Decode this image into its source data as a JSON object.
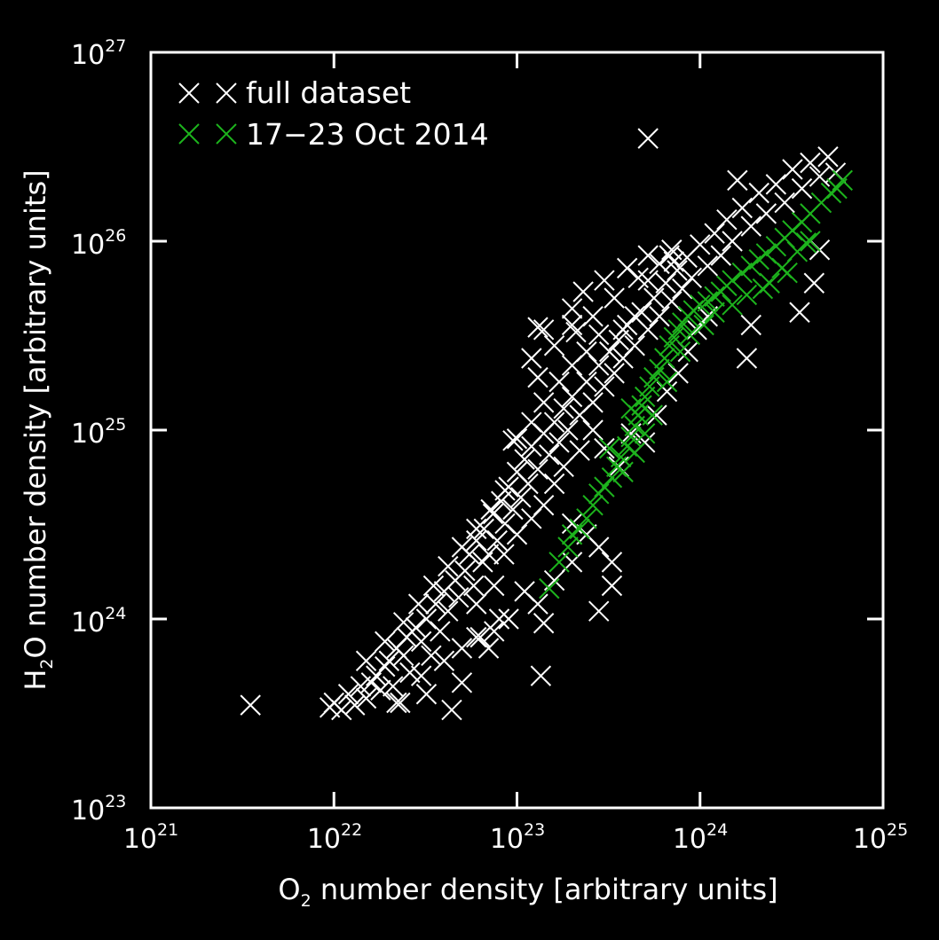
{
  "chart_data": {
    "type": "scatter",
    "xscale": "log",
    "yscale": "log",
    "xlim": [
      1e+21,
      1e+25
    ],
    "ylim": [
      1e+23,
      1e+27
    ],
    "xlabel": {
      "base": "O",
      "sub": "2",
      "rest": " number density [arbitrary units]"
    },
    "ylabel": {
      "base": "H",
      "sub": "2",
      "rest": "O number density [arbitrary units]"
    },
    "x_ticks": [
      {
        "base": "10",
        "exp": "21",
        "value": 1e+21
      },
      {
        "base": "10",
        "exp": "22",
        "value": 1e+22
      },
      {
        "base": "10",
        "exp": "23",
        "value": 1e+23
      },
      {
        "base": "10",
        "exp": "24",
        "value": 1e+24
      },
      {
        "base": "10",
        "exp": "25",
        "value": 1e+25
      }
    ],
    "y_ticks": [
      {
        "base": "10",
        "exp": "23",
        "value": 1e+23
      },
      {
        "base": "10",
        "exp": "24",
        "value": 1e+24
      },
      {
        "base": "10",
        "exp": "25",
        "value": 1e+25
      },
      {
        "base": "10",
        "exp": "26",
        "value": 1e+26
      },
      {
        "base": "10",
        "exp": "27",
        "value": 1e+27
      }
    ],
    "legend_position": "top-left",
    "grid": false,
    "marker": "x",
    "colors": {
      "background": "#000000",
      "axes": "#ffffff",
      "full": "#ffffff",
      "oct": "#1db31d"
    },
    "series": [
      {
        "name": "full dataset",
        "color": "#ffffff",
        "points": [
          [
            9.5e+21,
            3.4e+23
          ],
          [
            1e+22,
            3.6e+23
          ],
          [
            1.1e+22,
            3.3e+23
          ],
          [
            1.2e+22,
            4e+23
          ],
          [
            1.3e+22,
            3.5e+23
          ],
          [
            1.4e+22,
            4.4e+23
          ],
          [
            1.5e+22,
            3.8e+23
          ],
          [
            1.6e+22,
            4.6e+23
          ],
          [
            1.7e+22,
            5e+23
          ],
          [
            1.8e+22,
            4.2e+23
          ],
          [
            1.9e+22,
            5.6e+23
          ],
          [
            2e+22,
            6e+23
          ],
          [
            2.1e+22,
            4.4e+23
          ],
          [
            2.2e+22,
            7e+23
          ],
          [
            2.3e+22,
            3.6e+23
          ],
          [
            2.4e+22,
            6.4e+23
          ],
          [
            2.5e+22,
            8e+23
          ],
          [
            2.6e+22,
            5.2e+23
          ],
          [
            2.8e+22,
            9e+23
          ],
          [
            3e+22,
            7.6e+23
          ],
          [
            3.2e+22,
            1e+24
          ],
          [
            3.4e+22,
            6.4e+23
          ],
          [
            3.6e+22,
            1.2e+24
          ],
          [
            3.8e+22,
            8.6e+23
          ],
          [
            4e+22,
            1.4e+24
          ],
          [
            4.2e+22,
            1.1e+24
          ],
          [
            4.4e+22,
            3.3e+23
          ],
          [
            4.6e+22,
            1.6e+24
          ],
          [
            4.8e+22,
            1.3e+24
          ],
          [
            5e+22,
            4.6e+23
          ],
          [
            5.2e+22,
            1.8e+24
          ],
          [
            5.5e+22,
            2.2e+24
          ],
          [
            5.8e+22,
            1.5e+24
          ],
          [
            6e+22,
            2.6e+24
          ],
          [
            6.3e+22,
            8e+23
          ],
          [
            6.6e+22,
            3e+24
          ],
          [
            7e+22,
            2.2e+24
          ],
          [
            7.4e+22,
            3.6e+24
          ],
          [
            7.8e+22,
            2.6e+24
          ],
          [
            8.2e+22,
            4.2e+24
          ],
          [
            8.6e+22,
            3.2e+24
          ],
          [
            9e+22,
            5e+24
          ],
          [
            9.5e+22,
            3.8e+24
          ],
          [
            1e+23,
            6e+24
          ],
          [
            1.05e+23,
            4.4e+24
          ],
          [
            1.1e+23,
            7e+24
          ],
          [
            1.15e+23,
            5.2e+24
          ],
          [
            1.2e+23,
            8.2e+24
          ],
          [
            1.3e+23,
            6.2e+24
          ],
          [
            1.4e+23,
            9.6e+24
          ],
          [
            1.5e+23,
            7.4e+24
          ],
          [
            1.6e+23,
            1.1e+25
          ],
          [
            1.7e+23,
            8.6e+24
          ],
          [
            1.8e+23,
            1.3e+25
          ],
          [
            1.9e+23,
            1e+25
          ],
          [
            2e+23,
            1.5e+25
          ],
          [
            2.2e+23,
            1.2e+25
          ],
          [
            2.4e+23,
            1.8e+25
          ],
          [
            2.6e+23,
            1.4e+25
          ],
          [
            2.8e+23,
            2.2e+25
          ],
          [
            3e+23,
            1.7e+25
          ],
          [
            3.2e+23,
            2.6e+25
          ],
          [
            3.4e+23,
            2e+25
          ],
          [
            3.6e+23,
            3e+25
          ],
          [
            3.8e+23,
            2.4e+25
          ],
          [
            4e+23,
            3.6e+25
          ],
          [
            4.4e+23,
            2.8e+25
          ],
          [
            4.8e+23,
            4.2e+25
          ],
          [
            5.2e+23,
            3.4e+25
          ],
          [
            5.6e+23,
            5e+25
          ],
          [
            6e+23,
            4e+25
          ],
          [
            6.5e+23,
            6e+25
          ],
          [
            7e+23,
            4.8e+25
          ],
          [
            7.5e+23,
            7e+25
          ],
          [
            8e+23,
            5.6e+25
          ],
          [
            8.5e+23,
            8.2e+25
          ],
          [
            9e+23,
            6.4e+25
          ],
          [
            1e+24,
            9.6e+25
          ],
          [
            1.1e+24,
            7.4e+25
          ],
          [
            1.2e+24,
            1.1e+26
          ],
          [
            1.3e+24,
            8.4e+25
          ],
          [
            1.4e+24,
            1.3e+26
          ],
          [
            1.5e+24,
            1e+26
          ],
          [
            1.7e+24,
            1.5e+26
          ],
          [
            1.9e+24,
            1.2e+26
          ],
          [
            2.1e+24,
            1.8e+26
          ],
          [
            2.3e+24,
            1.4e+26
          ],
          [
            2.6e+24,
            2e+26
          ],
          [
            2.9e+24,
            1.6e+26
          ],
          [
            3.2e+24,
            2.4e+26
          ],
          [
            3.6e+24,
            1.9e+26
          ],
          [
            4e+24,
            2.6e+26
          ],
          [
            4.5e+24,
            2.2e+26
          ],
          [
            5e+24,
            2.8e+26
          ],
          [
            5.5e+24,
            2.3e+26
          ],
          [
            1.2e+23,
            2.4e+25
          ],
          [
            1.4e+23,
            3.4e+25
          ],
          [
            1.6e+23,
            2.8e+25
          ],
          [
            2e+23,
            4.4e+25
          ],
          [
            2.3e+23,
            5.4e+25
          ],
          [
            2.6e+23,
            4e+25
          ],
          [
            3e+23,
            6.2e+25
          ],
          [
            3.4e+23,
            5e+25
          ],
          [
            4e+23,
            7.2e+25
          ],
          [
            4.6e+23,
            6.4e+25
          ],
          [
            5.2e+23,
            8.4e+25
          ],
          [
            6e+23,
            7.6e+25
          ],
          [
            7e+23,
            9e+25
          ],
          [
            4.4e+23,
            4e+25
          ],
          [
            3.8e+23,
            3.4e+25
          ],
          [
            3e+23,
            8e+24
          ],
          [
            3.6e+23,
            6.4e+24
          ],
          [
            4.2e+23,
            9.6e+24
          ],
          [
            5e+23,
            8.6e+24
          ],
          [
            5.8e+23,
            1.2e+25
          ],
          [
            6.6e+23,
            1.6e+25
          ],
          [
            7.6e+23,
            2e+25
          ],
          [
            8.6e+23,
            2.6e+25
          ],
          [
            9.6e+23,
            3.4e+25
          ],
          [
            1.1e+24,
            4e+25
          ],
          [
            2e+23,
            3.2e+24
          ],
          [
            2.4e+23,
            2.8e+24
          ],
          [
            2.8e+23,
            2.4e+24
          ],
          [
            2e+23,
            2e+24
          ],
          [
            1.6e+23,
            1.6e+24
          ],
          [
            1.3e+23,
            1.2e+24
          ],
          [
            1.1e+23,
            1.4e+24
          ],
          [
            9e+22,
            1e+24
          ],
          [
            7.5e+22,
            8.6e+23
          ],
          [
            6e+22,
            1.2e+24
          ],
          [
            6.5e+22,
            2e+24
          ],
          [
            7.5e+22,
            1.5e+24
          ],
          [
            8.5e+22,
            2.2e+24
          ],
          [
            1e+23,
            2.8e+24
          ],
          [
            1.2e+23,
            3.4e+24
          ],
          [
            1.4e+23,
            4e+24
          ],
          [
            1.6e+23,
            5.2e+24
          ],
          [
            1.8e+23,
            6.4e+24
          ],
          [
            2.2e+23,
            7.8e+24
          ],
          [
            2.6e+23,
            1e+25
          ],
          [
            1.5e+22,
            6e+23
          ],
          [
            1.9e+22,
            7.6e+23
          ],
          [
            2.4e+22,
            9.6e+23
          ],
          [
            2.9e+22,
            1.2e+24
          ],
          [
            3.5e+22,
            1.5e+24
          ],
          [
            4.2e+22,
            1.9e+24
          ],
          [
            5e+22,
            2.4e+24
          ],
          [
            6e+22,
            3e+24
          ],
          [
            7.2e+22,
            3.8e+24
          ],
          [
            8.6e+22,
            4.8e+24
          ],
          [
            1e+23,
            9e+24
          ],
          [
            1.2e+23,
            1.1e+25
          ],
          [
            1.4e+23,
            1.4e+25
          ],
          [
            1.7e+23,
            1.8e+25
          ],
          [
            2e+23,
            2.2e+25
          ],
          [
            2.4e+23,
            2.6e+25
          ],
          [
            2.8e+23,
            3.2e+25
          ],
          [
            2.2e+22,
            3.6e+23
          ],
          [
            3.2e+22,
            4e+23
          ],
          [
            3e+22,
            5e+23
          ],
          [
            4e+22,
            6e+23
          ],
          [
            5e+22,
            7e+23
          ],
          [
            6e+22,
            8e+23
          ],
          [
            7e+22,
            7e+23
          ],
          [
            8e+22,
            1e+24
          ],
          [
            3.5e+21,
            3.5e+23
          ],
          [
            5.2e+23,
            3.5e+26
          ],
          [
            1.6e+24,
            2.1e+26
          ],
          [
            1.3e+23,
            3.5e+25
          ],
          [
            1.3e+23,
            1.9e+25
          ],
          [
            9.5e+22,
            8.8e+24
          ],
          [
            1.35e+23,
            5e+23
          ],
          [
            2.8e+23,
            1.1e+24
          ],
          [
            3.3e+23,
            1.5e+24
          ],
          [
            3.3e+23,
            2e+24
          ],
          [
            1.4e+23,
            9.5e+23
          ],
          [
            1.8e+24,
            2.4e+25
          ],
          [
            3.5e+24,
            4.2e+25
          ],
          [
            4.2e+24,
            6e+25
          ],
          [
            4.5e+24,
            9e+25
          ],
          [
            1.9e+24,
            3.6e+25
          ],
          [
            6.8e+23,
            8.4e+25
          ],
          [
            7.2e+23,
            7.8e+25
          ],
          [
            5.2e+23,
            6.2e+25
          ],
          [
            2.1e+23,
            3.3e+25
          ],
          [
            2e+23,
            3.6e+25
          ]
        ]
      },
      {
        "name": "17−23 Oct 2014",
        "color": "#1db31d",
        "points": [
          [
            1.5e+23,
            1.45e+24
          ],
          [
            1.7e+23,
            2e+24
          ],
          [
            1.9e+23,
            2.4e+24
          ],
          [
            2e+23,
            2.8e+24
          ],
          [
            2.2e+23,
            3e+24
          ],
          [
            2.4e+23,
            3.4e+24
          ],
          [
            2.6e+23,
            4e+24
          ],
          [
            2.8e+23,
            4.6e+24
          ],
          [
            3e+23,
            5e+24
          ],
          [
            3.3e+23,
            5.6e+24
          ],
          [
            3.5e+23,
            6.4e+24
          ],
          [
            3.7e+23,
            7.2e+24
          ],
          [
            4e+23,
            8.2e+24
          ],
          [
            4.2e+23,
            9.2e+24
          ],
          [
            4.4e+23,
            1.05e+25
          ],
          [
            4.6e+23,
            1.2e+25
          ],
          [
            4.8e+23,
            1.35e+25
          ],
          [
            5e+23,
            1.5e+25
          ],
          [
            5.3e+23,
            1.7e+25
          ],
          [
            5.6e+23,
            1.9e+25
          ],
          [
            6e+23,
            2.1e+25
          ],
          [
            6.4e+23,
            2.4e+25
          ],
          [
            6.8e+23,
            2.8e+25
          ],
          [
            7.2e+23,
            3.1e+25
          ],
          [
            7.6e+23,
            3.4e+25
          ],
          [
            8e+23,
            3.7e+25
          ],
          [
            8.6e+23,
            4e+25
          ],
          [
            9.2e+23,
            4.3e+25
          ],
          [
            1e+24,
            4.6e+25
          ],
          [
            1.1e+24,
            4.8e+25
          ],
          [
            1.2e+24,
            5.1e+25
          ],
          [
            1.3e+24,
            5.4e+25
          ],
          [
            1.4e+24,
            5.8e+25
          ],
          [
            1.5e+24,
            6.2e+25
          ],
          [
            1.7e+24,
            6.8e+25
          ],
          [
            1.9e+24,
            7.4e+25
          ],
          [
            2.1e+24,
            8e+25
          ],
          [
            2.3e+24,
            8.6e+25
          ],
          [
            2.6e+24,
            9.4e+25
          ],
          [
            2.9e+24,
            1.04e+26
          ],
          [
            3.2e+24,
            1.14e+26
          ],
          [
            3.6e+24,
            1.26e+26
          ],
          [
            4e+24,
            1.4e+26
          ],
          [
            4.6e+24,
            1.6e+26
          ],
          [
            5.2e+24,
            1.8e+26
          ],
          [
            5.6e+24,
            1.9e+26
          ],
          [
            6e+24,
            2.1e+26
          ],
          [
            4e+24,
            1e+26
          ],
          [
            3e+24,
            6.8e+25
          ],
          [
            2.4e+24,
            6e+25
          ],
          [
            3.2e+23,
            8e+24
          ],
          [
            3.8e+23,
            6e+24
          ],
          [
            4.4e+23,
            7.6e+24
          ],
          [
            5e+23,
            9.6e+24
          ],
          [
            4.2e+23,
            1.3e+25
          ],
          [
            5.5e+23,
            1.2e+25
          ],
          [
            6.6e+23,
            1.8e+25
          ],
          [
            7.8e+23,
            2.6e+25
          ],
          [
            8.8e+23,
            3.2e+25
          ],
          [
            1.05e+24,
            3.6e+25
          ],
          [
            1.2e+24,
            4.2e+25
          ],
          [
            1.5e+24,
            4.6e+25
          ],
          [
            1.8e+24,
            5.2e+25
          ],
          [
            2.2e+24,
            5.6e+25
          ],
          [
            2.8e+24,
            7.2e+25
          ],
          [
            3.4e+24,
            8.8e+25
          ],
          [
            3.8e+24,
            9.8e+25
          ]
        ]
      }
    ]
  }
}
